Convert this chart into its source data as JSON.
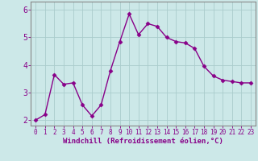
{
  "x": [
    0,
    1,
    2,
    3,
    4,
    5,
    6,
    7,
    8,
    9,
    10,
    11,
    12,
    13,
    14,
    15,
    16,
    17,
    18,
    19,
    20,
    21,
    22,
    23
  ],
  "y": [
    2.0,
    2.2,
    3.65,
    3.3,
    3.35,
    2.55,
    2.15,
    2.55,
    3.8,
    4.85,
    5.85,
    5.1,
    5.5,
    5.4,
    5.0,
    4.85,
    4.8,
    4.6,
    3.95,
    3.6,
    3.45,
    3.4,
    3.35,
    3.35
  ],
  "line_color": "#880088",
  "marker": "D",
  "marker_size": 2.5,
  "bg_color": "#cce8e8",
  "grid_color": "#aacccc",
  "xlabel": "Windchill (Refroidissement éolien,°C)",
  "ylim": [
    1.8,
    6.3
  ],
  "yticks": [
    2,
    3,
    4,
    5,
    6
  ],
  "xlim": [
    -0.5,
    23.5
  ],
  "xtick_labels": [
    "0",
    "1",
    "2",
    "3",
    "4",
    "5",
    "6",
    "7",
    "8",
    "9",
    "10",
    "11",
    "12",
    "13",
    "14",
    "15",
    "16",
    "17",
    "18",
    "19",
    "20",
    "21",
    "22",
    "23"
  ],
  "line_width": 1.0,
  "spine_color": "#888888",
  "tick_color": "#880088",
  "label_color": "#880088",
  "xlabel_fontsize": 6.5,
  "ytick_fontsize": 7,
  "xtick_fontsize": 5.5
}
